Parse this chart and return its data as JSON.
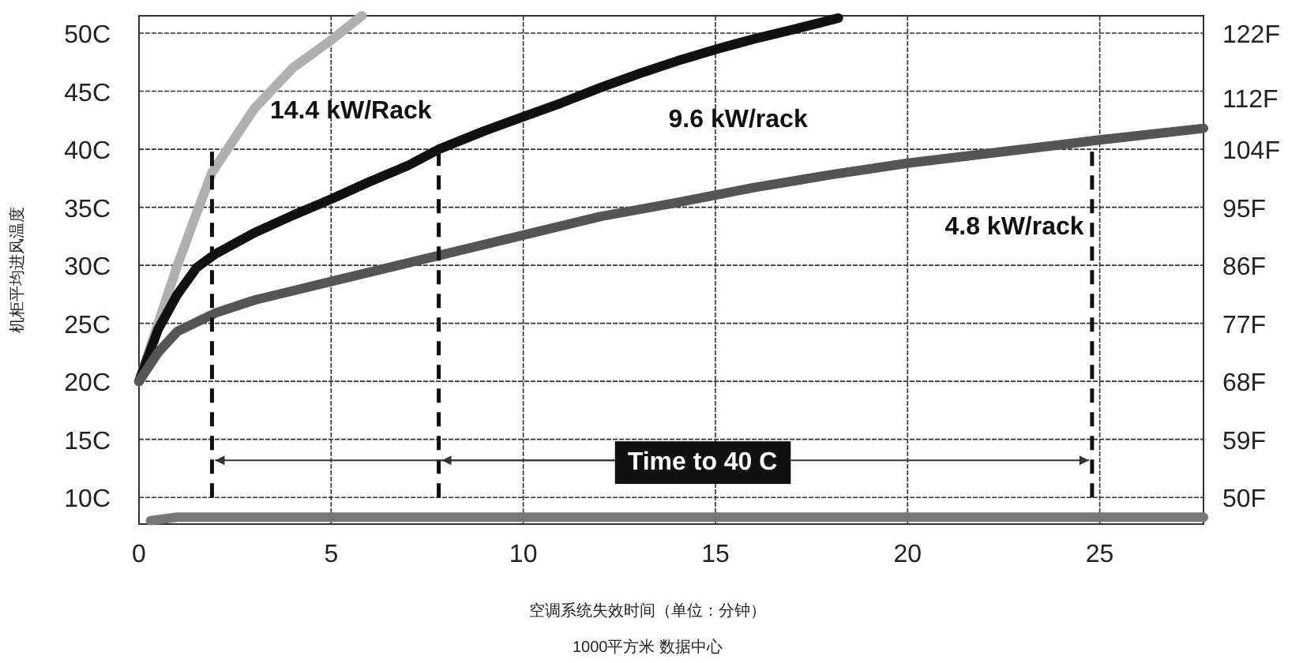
{
  "chart_data": {
    "type": "line",
    "xlabel": "空调系统失效时间（单位：分钟）",
    "ylabel": "机柜平均进风温度",
    "xlim": [
      0,
      27.7
    ],
    "ylim": [
      7.7,
      51.5
    ],
    "xticks": [
      0,
      5,
      10,
      15,
      20,
      25
    ],
    "yticks": [
      {
        "value": 10,
        "label": "10C"
      },
      {
        "value": 15,
        "label": "15C"
      },
      {
        "value": 20,
        "label": "20C"
      },
      {
        "value": 25,
        "label": "25C"
      },
      {
        "value": 30,
        "label": "30C"
      },
      {
        "value": 35,
        "label": "35C"
      },
      {
        "value": 40,
        "label": "40C"
      },
      {
        "value": 45,
        "label": "45C"
      },
      {
        "value": 50,
        "label": "50C"
      }
    ],
    "y2lim": [
      45.9,
      124.7
    ],
    "y2ticks": [
      {
        "value": 50,
        "label": "50F"
      },
      {
        "value": 59,
        "label": "59F"
      },
      {
        "value": 68,
        "label": "68F"
      },
      {
        "value": 77,
        "label": "77F"
      },
      {
        "value": 86,
        "label": "86F"
      },
      {
        "value": 95,
        "label": "95F"
      },
      {
        "value": 104,
        "label": "104F"
      },
      {
        "value": 112,
        "label": "112F"
      },
      {
        "value": 122,
        "label": "122F"
      }
    ],
    "grid": true,
    "legend": false,
    "series": [
      {
        "name": "14.4 kW/Rack",
        "color": "#b0b0b0",
        "x": [
          0,
          0.3,
          0.7,
          1,
          1.5,
          1.9,
          2.5,
          3,
          4,
          5,
          5.8
        ],
        "values": [
          20,
          23,
          27,
          30,
          34.5,
          38,
          41,
          43.5,
          47,
          49.4,
          51.5
        ]
      },
      {
        "name": "9.6 kW/rack",
        "color": "#111111",
        "x": [
          0,
          0.5,
          1,
          1.5,
          2,
          3,
          4,
          5,
          6,
          7,
          7.8,
          9,
          10,
          11,
          12,
          13,
          14,
          15,
          16,
          17,
          18.2
        ],
        "values": [
          20,
          24.5,
          27.5,
          29.8,
          31,
          32.8,
          34.3,
          35.7,
          37.2,
          38.6,
          40,
          41.6,
          42.8,
          44,
          45.3,
          46.5,
          47.6,
          48.6,
          49.5,
          50.3,
          51.3
        ]
      },
      {
        "name": "4.8 kW/rack",
        "color": "#555555",
        "x": [
          0,
          0.5,
          1,
          2,
          3,
          4,
          5,
          6,
          7,
          8,
          10,
          12,
          14,
          16,
          18,
          20,
          22,
          24,
          25,
          27.7
        ],
        "values": [
          20,
          22.5,
          24.3,
          25.9,
          27,
          27.8,
          28.6,
          29.4,
          30.2,
          31,
          32.6,
          34.2,
          35.4,
          36.7,
          37.8,
          38.8,
          39.6,
          40.4,
          40.8,
          41.8
        ]
      },
      {
        "color": "#777777",
        "x": [
          0.3,
          1,
          27.7
        ],
        "values": [
          8.0,
          8.3,
          8.3
        ]
      },
      {
        "color": "#111111",
        "line_style": "dashed",
        "x": [
          1.9,
          1.9
        ],
        "values": [
          10,
          40
        ]
      },
      {
        "color": "#111111",
        "line_style": "dashed",
        "x": [
          7.8,
          7.8
        ],
        "values": [
          10,
          40
        ]
      },
      {
        "color": "#111111",
        "line_style": "dashed",
        "x": [
          24.8,
          24.8
        ],
        "values": [
          10,
          40
        ]
      }
    ],
    "annotations": [
      {
        "text": "Time to 40 C",
        "x": 7.8,
        "y": 13.2
      },
      "1000平方米 数据中心"
    ]
  }
}
